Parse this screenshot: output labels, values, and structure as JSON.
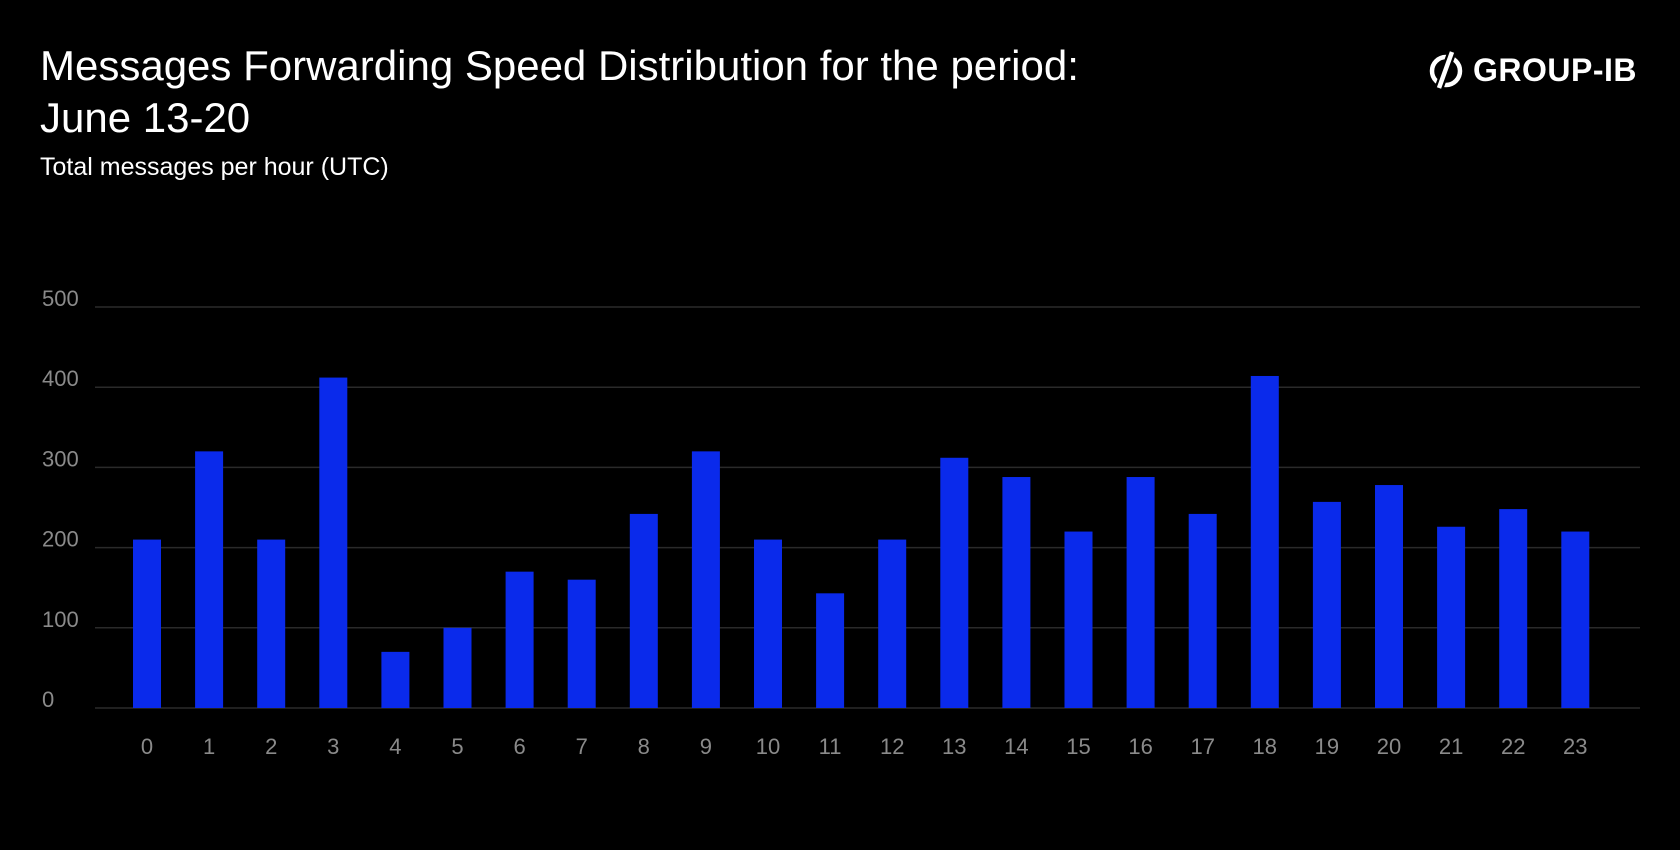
{
  "title_lines": [
    "Messages Forwarding Speed Distribution for the period:",
    "June 13-20"
  ],
  "subtitle": "Total messages per hour (UTC)",
  "logo": {
    "text": "GROUP-IB",
    "icon": "group-ib-logo-icon"
  },
  "colors": {
    "background": "#000000",
    "bar": "#0a2aeb",
    "grid": "#2a2a2a",
    "axis_text": "#8a8a8a",
    "text": "#ffffff"
  },
  "chart_data": {
    "type": "bar",
    "title": "Messages Forwarding Speed Distribution for the period: June 13-20",
    "subtitle": "Total messages per hour (UTC)",
    "xlabel": "",
    "ylabel": "",
    "categories": [
      "0",
      "1",
      "2",
      "3",
      "4",
      "5",
      "6",
      "7",
      "8",
      "9",
      "10",
      "11",
      "12",
      "13",
      "14",
      "15",
      "16",
      "17",
      "18",
      "19",
      "20",
      "21",
      "22",
      "23"
    ],
    "values": [
      210,
      320,
      210,
      412,
      70,
      100,
      170,
      160,
      242,
      320,
      210,
      143,
      210,
      312,
      288,
      220,
      288,
      242,
      414,
      257,
      278,
      226,
      248,
      220
    ],
    "ylim": [
      0,
      500
    ],
    "yticks": [
      0,
      100,
      200,
      300,
      400,
      500
    ],
    "grid": true,
    "legend": "none"
  }
}
